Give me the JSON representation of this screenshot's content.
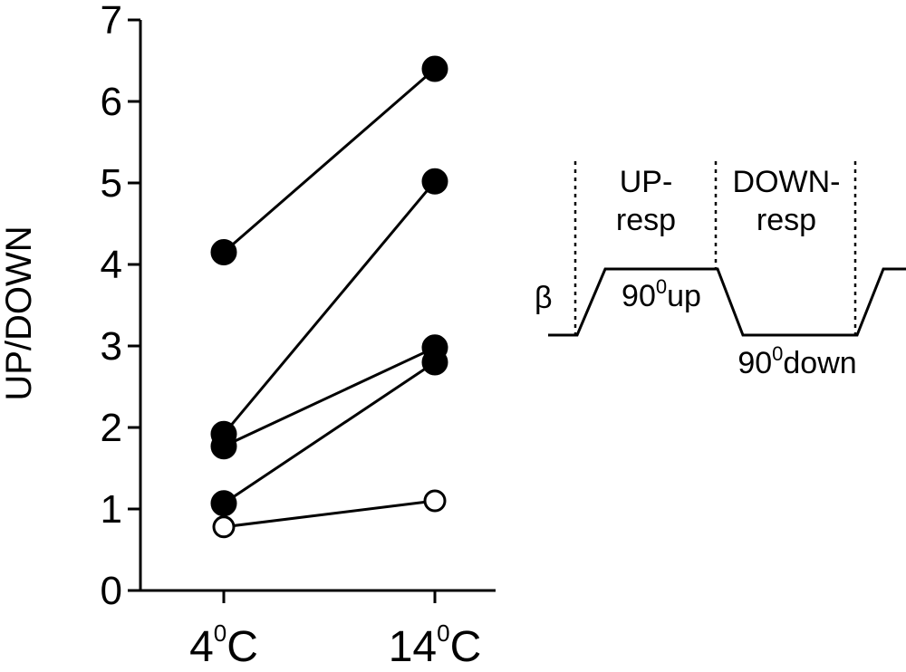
{
  "chart_data": {
    "type": "scatter",
    "ylabel": "UP/DOWN",
    "ylim": [
      0,
      7
    ],
    "yticks": [
      "0",
      "1",
      "2",
      "3",
      "4",
      "5",
      "6",
      "7"
    ],
    "categories": [
      {
        "base": "4",
        "sup": "0",
        "unit": "C"
      },
      {
        "base": "14",
        "sup": "0",
        "unit": "C"
      }
    ],
    "series": [
      {
        "values": [
          4.15,
          6.4
        ],
        "marker": "filled"
      },
      {
        "values": [
          1.92,
          5.02
        ],
        "marker": "filled"
      },
      {
        "values": [
          1.77,
          2.98
        ],
        "marker": "filled"
      },
      {
        "values": [
          1.07,
          2.8
        ],
        "marker": "filled"
      },
      {
        "values": [
          0.78,
          1.1
        ],
        "marker": "open"
      }
    ]
  },
  "diagram": {
    "beta": "β",
    "up_resp_line1": "UP-",
    "up_resp_line2": "resp",
    "down_resp_line1": "DOWN-",
    "down_resp_line2": "resp",
    "up_label_num": "90",
    "up_label_sup": "0",
    "up_label_word": "up",
    "down_label_num": "90",
    "down_label_sup": "0",
    "down_label_word": "down"
  }
}
